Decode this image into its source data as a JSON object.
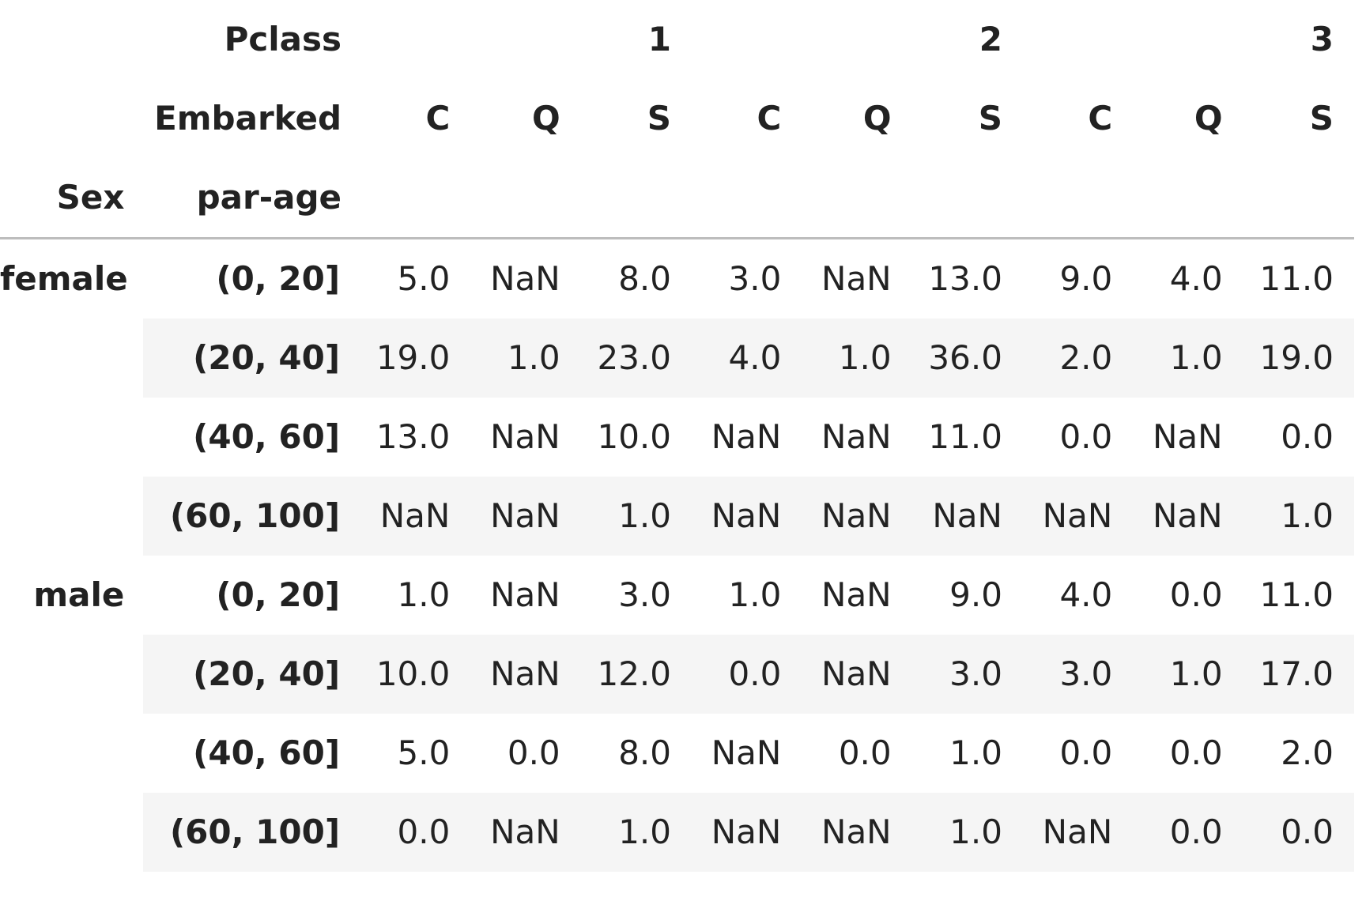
{
  "columns": {
    "level0_name": "Pclass",
    "level1_name": "Embarked",
    "pclass_values": [
      "1",
      "2",
      "3"
    ],
    "embarked_values": [
      "C",
      "Q",
      "S",
      "C",
      "Q",
      "S",
      "C",
      "Q",
      "S"
    ]
  },
  "index": {
    "level0_name": "Sex",
    "level1_name": "par-age"
  },
  "groups": [
    {
      "sex": "female",
      "rows": [
        {
          "age": "(0, 20]",
          "values": [
            "5.0",
            "NaN",
            "8.0",
            "3.0",
            "NaN",
            "13.0",
            "9.0",
            "4.0",
            "11.0"
          ]
        },
        {
          "age": "(20, 40]",
          "values": [
            "19.0",
            "1.0",
            "23.0",
            "4.0",
            "1.0",
            "36.0",
            "2.0",
            "1.0",
            "19.0"
          ]
        },
        {
          "age": "(40, 60]",
          "values": [
            "13.0",
            "NaN",
            "10.0",
            "NaN",
            "NaN",
            "11.0",
            "0.0",
            "NaN",
            "0.0"
          ]
        },
        {
          "age": "(60, 100]",
          "values": [
            "NaN",
            "NaN",
            "1.0",
            "NaN",
            "NaN",
            "NaN",
            "NaN",
            "NaN",
            "1.0"
          ]
        }
      ]
    },
    {
      "sex": "male",
      "rows": [
        {
          "age": "(0, 20]",
          "values": [
            "1.0",
            "NaN",
            "3.0",
            "1.0",
            "NaN",
            "9.0",
            "4.0",
            "0.0",
            "11.0"
          ]
        },
        {
          "age": "(20, 40]",
          "values": [
            "10.0",
            "NaN",
            "12.0",
            "0.0",
            "NaN",
            "3.0",
            "3.0",
            "1.0",
            "17.0"
          ]
        },
        {
          "age": "(40, 60]",
          "values": [
            "5.0",
            "0.0",
            "8.0",
            "NaN",
            "0.0",
            "1.0",
            "0.0",
            "0.0",
            "2.0"
          ]
        },
        {
          "age": "(60, 100]",
          "values": [
            "0.0",
            "NaN",
            "1.0",
            "NaN",
            "NaN",
            "1.0",
            "NaN",
            "0.0",
            "0.0"
          ]
        }
      ]
    }
  ]
}
